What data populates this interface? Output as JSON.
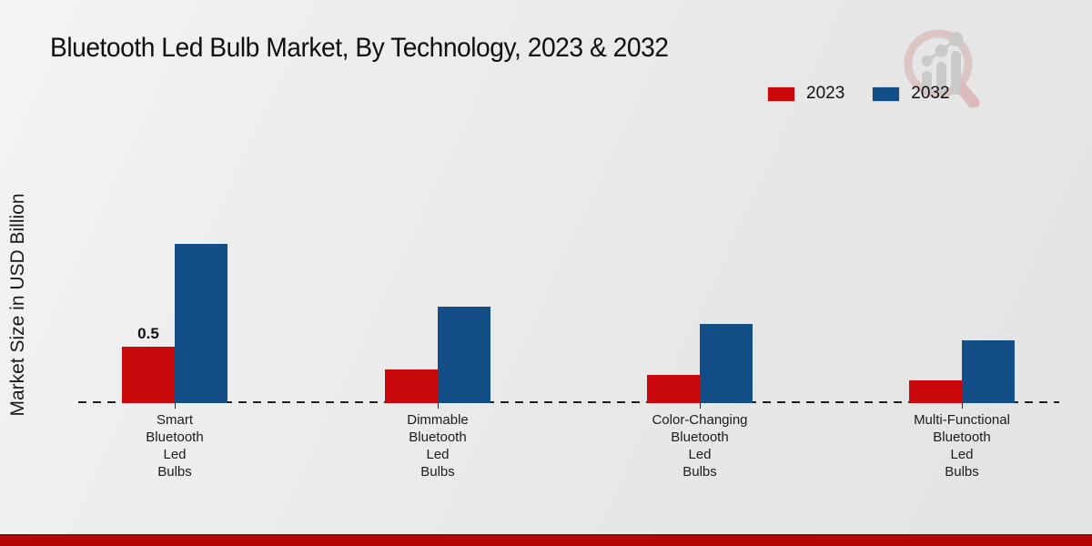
{
  "page": {
    "title": "Bluetooth Led Bulb Market, By Technology, 2023 & 2032"
  },
  "legend": {
    "items": [
      {
        "label": "2023",
        "color": "#c9090b"
      },
      {
        "label": "2032",
        "color": "#134e87"
      }
    ]
  },
  "icons": {
    "watermark": "magnifier-growth-chart-logo"
  },
  "colors": {
    "accent_red": "#c9090b",
    "accent_blue": "#134e87",
    "footer_bar": "#b20506",
    "axis_line": "#1d1d1d",
    "background": "#ebebeb"
  },
  "chart_data": {
    "type": "bar",
    "title": "Bluetooth Led Bulb Market, By Technology, 2023 & 2032",
    "ylabel": "Market Size in USD Billion",
    "xlabel": "",
    "categories": [
      "Smart Bluetooth Led Bulbs",
      "Dimmable Bluetooth Led Bulbs",
      "Color-Changing Bluetooth Led Bulbs",
      "Multi-Functional Bluetooth Led Bulbs"
    ],
    "category_label_lines": [
      [
        "Smart",
        "Bluetooth",
        "Led",
        "Bulbs"
      ],
      [
        "Dimmable",
        "Bluetooth",
        "Led",
        "Bulbs"
      ],
      [
        "Color-Changing",
        "Bluetooth",
        "Led",
        "Bulbs"
      ],
      [
        "Multi-Functional",
        "Bluetooth",
        "Led",
        "Bulbs"
      ]
    ],
    "series": [
      {
        "name": "2023",
        "color": "#c9090b",
        "values": [
          0.5,
          0.3,
          0.25,
          0.2
        ]
      },
      {
        "name": "2032",
        "color": "#134e87",
        "values": [
          1.4,
          0.85,
          0.7,
          0.55
        ]
      }
    ],
    "data_labels": [
      {
        "series": "2023",
        "category_index": 0,
        "text": "0.5"
      }
    ],
    "ylim": [
      0,
      1.6
    ],
    "grid": false,
    "legend_position": "top-right",
    "x_axis_style": "dashed"
  }
}
